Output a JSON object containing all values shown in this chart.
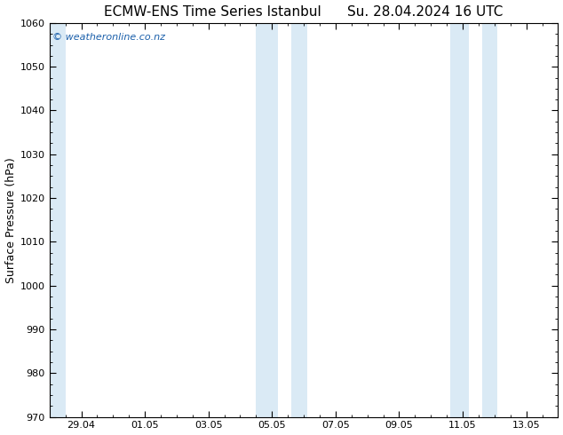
{
  "title": "ECMW-ENS Time Series Istanbul      Su. 28.04.2024 16 UTC",
  "ylabel": "Surface Pressure (hPa)",
  "ylim": [
    970,
    1060
  ],
  "yticks": [
    970,
    980,
    990,
    1000,
    1010,
    1020,
    1030,
    1040,
    1050,
    1060
  ],
  "xtick_labels": [
    "29.04",
    "01.05",
    "03.05",
    "05.05",
    "07.05",
    "09.05",
    "11.05",
    "13.05"
  ],
  "xtick_positions": [
    1,
    3,
    5,
    7,
    9,
    11,
    13,
    15
  ],
  "xlim": [
    0,
    16
  ],
  "background_color": "#ffffff",
  "plot_bg_color": "#ffffff",
  "shaded_color": "#daeaf5",
  "shaded_regions": [
    {
      "xstart": 0.0,
      "xend": 0.5
    },
    {
      "xstart": 6.5,
      "xend": 7.2
    },
    {
      "xstart": 7.6,
      "xend": 8.1
    },
    {
      "xstart": 12.6,
      "xend": 13.2
    },
    {
      "xstart": 13.6,
      "xend": 14.1
    }
  ],
  "watermark": "© weatheronline.co.nz",
  "watermark_color": "#1a5faa",
  "title_fontsize": 11,
  "label_fontsize": 9,
  "tick_fontsize": 8,
  "border_color": "#000000",
  "tick_color": "#000000"
}
